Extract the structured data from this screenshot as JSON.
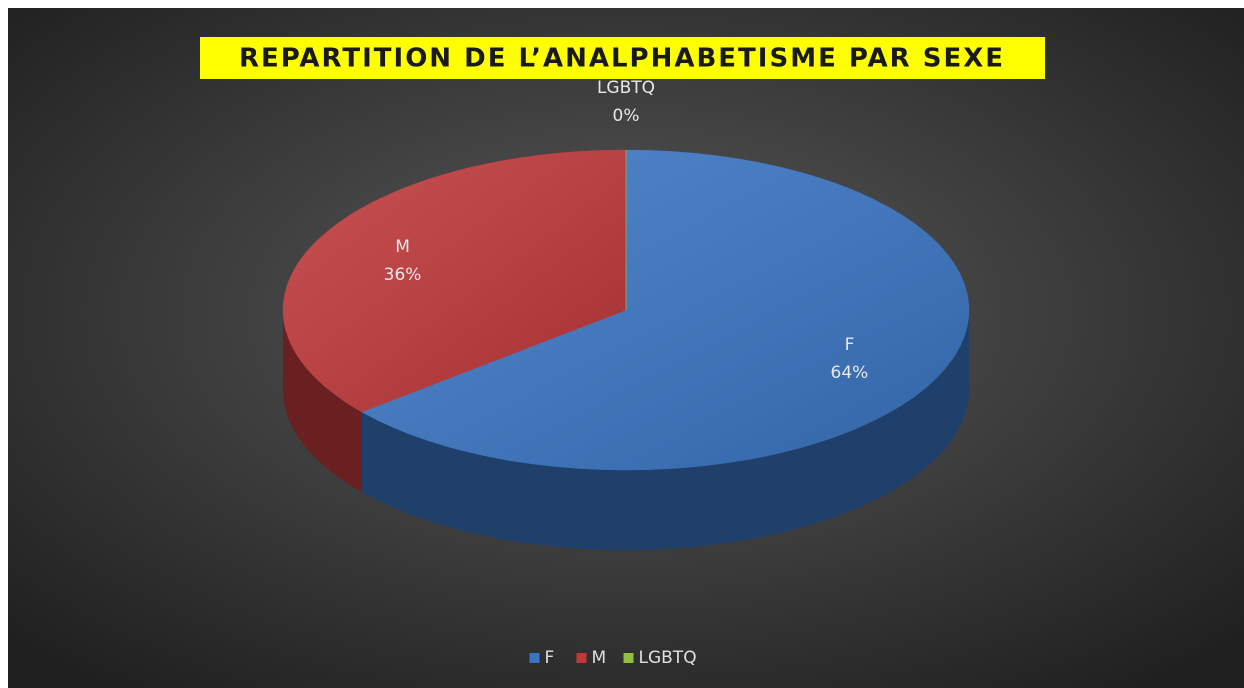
{
  "chart_data": {
    "type": "pie",
    "title": "REPARTITION DE L’ANALPHABETISME PAR SEXE",
    "categories": [
      "F",
      "M",
      "LGBTQ"
    ],
    "values": [
      64,
      36,
      0
    ],
    "value_labels": [
      "64%",
      "36%",
      "0%"
    ],
    "colors": [
      "#3a75c4",
      "#c0383a",
      "#8fbf3f"
    ],
    "legend": "bottom"
  }
}
